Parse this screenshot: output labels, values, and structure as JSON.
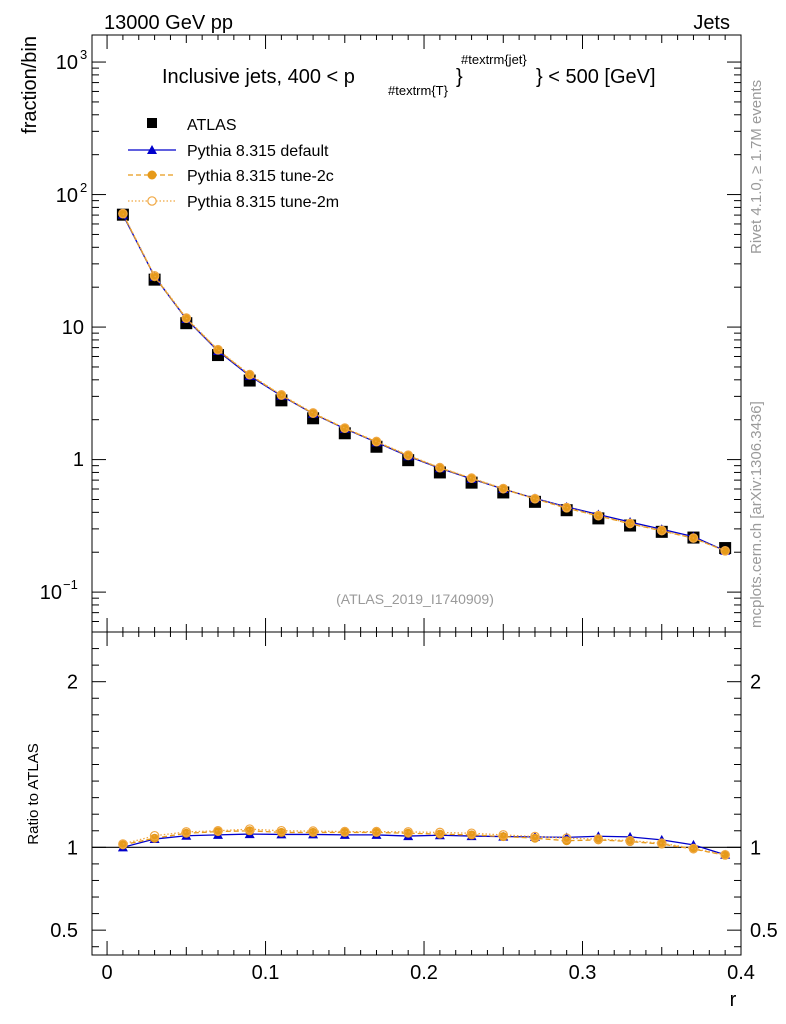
{
  "header": {
    "left": "13000 GeV pp",
    "right": "Jets"
  },
  "side_labels": {
    "rivet": "Rivet 4.1.0, ≥ 1.7M events",
    "mcplots": "mcplots.cern.ch [arXiv:1306.3436]"
  },
  "watermark": "(ATLAS_2019_I1740909)",
  "chart_data": [
    {
      "type": "line",
      "title_main": "Inclusive jets, 400 < p",
      "title_sub": "#textrm{T}",
      "title_sup": "#textrm{jet}",
      "title_tail": "} < 500 [GeV]",
      "title_brace": "}",
      "ylabel": "fraction/bin",
      "yscale": "log",
      "ylim": [
        0.05,
        1600
      ],
      "xlim": [
        -0.0095,
        0.4
      ],
      "ytick_labels": {
        "e3_base": "10",
        "e3_exp": "3",
        "e2_base": "10",
        "e2_exp": "2",
        "ten": "10",
        "one": "1",
        "em1_base": "10",
        "em1_exp": "−1"
      },
      "x": [
        0.01,
        0.03,
        0.05,
        0.07,
        0.09,
        0.11,
        0.13,
        0.15,
        0.17,
        0.19,
        0.21,
        0.23,
        0.25,
        0.27,
        0.29,
        0.31,
        0.33,
        0.35,
        0.37,
        0.39
      ],
      "series": [
        {
          "name": "ATLAS",
          "color": "#000000",
          "marker": "square",
          "values": [
            70.5,
            22.8,
            10.7,
            6.15,
            3.95,
            2.8,
            2.05,
            1.58,
            1.25,
            0.99,
            0.8,
            0.67,
            0.565,
            0.48,
            0.415,
            0.36,
            0.318,
            0.285,
            0.258,
            0.215
          ]
        },
        {
          "name": "Pythia 8.315 default",
          "color": "#0000cc",
          "marker": "triangle",
          "values": [
            70.5,
            24.0,
            11.5,
            6.6,
            4.28,
            3.03,
            2.22,
            1.71,
            1.35,
            1.06,
            0.86,
            0.715,
            0.6,
            0.51,
            0.44,
            0.385,
            0.338,
            0.298,
            0.262,
            0.205
          ]
        },
        {
          "name": "Pythia 8.315 tune-2c",
          "color": "#e69a1a",
          "marker": "circle",
          "values": [
            71.5,
            24.0,
            11.6,
            6.7,
            4.35,
            3.05,
            2.23,
            1.72,
            1.36,
            1.07,
            0.865,
            0.72,
            0.6,
            0.505,
            0.43,
            0.376,
            0.328,
            0.29,
            0.255,
            0.205
          ]
        },
        {
          "name": "Pythia 8.315 tune-2m",
          "color": "#f0a742",
          "marker": "open-circle",
          "values": [
            71.9,
            24.4,
            11.7,
            6.75,
            4.38,
            3.08,
            2.25,
            1.73,
            1.37,
            1.08,
            0.87,
            0.725,
            0.605,
            0.507,
            0.435,
            0.378,
            0.33,
            0.292,
            0.256,
            0.205
          ]
        }
      ]
    },
    {
      "type": "line",
      "ylabel": "Ratio to ATLAS",
      "xlabel": "r",
      "ylim": [
        0.35,
        2.3
      ],
      "xlim": [
        -0.0095,
        0.4
      ],
      "yticks": [
        0.5,
        1,
        2
      ],
      "ytick_labels": [
        "0.5",
        "1",
        "2"
      ],
      "xticks": [
        0,
        0.1,
        0.2,
        0.3,
        0.4
      ],
      "xtick_labels": [
        "0",
        "0.1",
        "0.2",
        "0.3",
        "0.4"
      ],
      "reference_line": 1,
      "x": [
        0.01,
        0.03,
        0.05,
        0.07,
        0.09,
        0.11,
        0.13,
        0.15,
        0.17,
        0.19,
        0.21,
        0.23,
        0.25,
        0.27,
        0.29,
        0.31,
        0.33,
        0.35,
        0.37,
        0.39
      ],
      "series": [
        {
          "name": "Pythia 8.315 default",
          "values": [
            1.0,
            1.05,
            1.07,
            1.075,
            1.08,
            1.078,
            1.078,
            1.075,
            1.075,
            1.068,
            1.073,
            1.068,
            1.065,
            1.063,
            1.06,
            1.067,
            1.063,
            1.045,
            1.015,
            0.955
          ]
        },
        {
          "name": "Pythia 8.315 tune-2c",
          "values": [
            1.015,
            1.055,
            1.085,
            1.095,
            1.1,
            1.09,
            1.09,
            1.09,
            1.09,
            1.085,
            1.08,
            1.075,
            1.065,
            1.055,
            1.04,
            1.045,
            1.035,
            1.02,
            0.99,
            0.952
          ]
        },
        {
          "name": "Pythia 8.315 tune-2m",
          "values": [
            1.02,
            1.07,
            1.093,
            1.1,
            1.11,
            1.1,
            1.098,
            1.095,
            1.095,
            1.093,
            1.09,
            1.085,
            1.075,
            1.065,
            1.055,
            1.05,
            1.04,
            1.025,
            0.993,
            0.955
          ]
        }
      ]
    }
  ]
}
